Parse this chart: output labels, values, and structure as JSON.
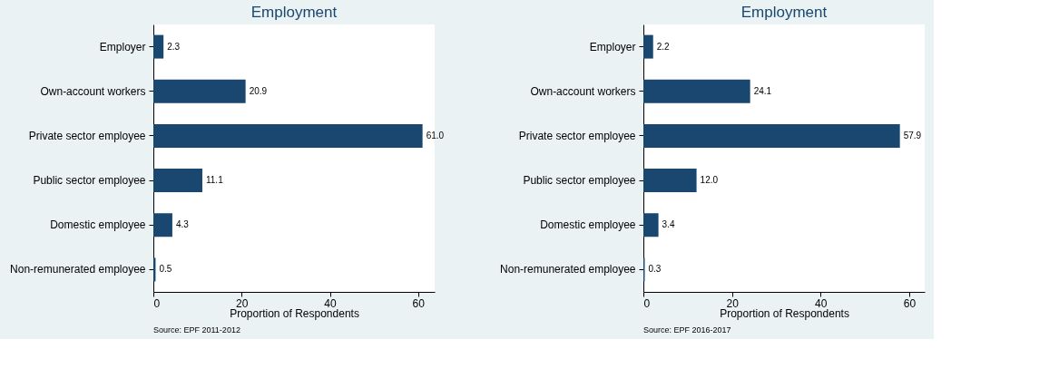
{
  "chart_data": [
    {
      "type": "bar",
      "orientation": "horizontal",
      "title": "Employment",
      "xlabel": "Proportion of Respondents",
      "categories": [
        "Employer",
        "Own-account workers",
        "Private sector employee",
        "Public sector employee",
        "Domestic employee",
        "Non-remunerated employee"
      ],
      "values": [
        2.3,
        20.9,
        61.0,
        11.1,
        4.3,
        0.5
      ],
      "color": "#1a476f",
      "value_labels": [
        "2.3",
        "20.9",
        "61.0",
        "11.1",
        "4.3",
        "0.5"
      ],
      "xlim": [
        0,
        63.75
      ],
      "xticks": [
        0,
        20,
        40,
        60
      ],
      "annotations": [
        "Source: EPF 2011-2012"
      ]
    },
    {
      "type": "bar",
      "orientation": "horizontal",
      "title": "Employment",
      "xlabel": "Proportion of Respondents",
      "categories": [
        "Employer",
        "Own-account workers",
        "Private sector employee",
        "Public sector employee",
        "Domestic employee",
        "Non-remunerated employee"
      ],
      "values": [
        2.2,
        24.1,
        57.9,
        12.0,
        3.4,
        0.3
      ],
      "color": "#1a476f",
      "value_labels": [
        "2.2",
        "24.1",
        "57.9",
        "12.0",
        "3.4",
        "0.3"
      ],
      "xlim": [
        0,
        63.5
      ],
      "xticks": [
        0,
        20,
        40,
        60
      ],
      "annotations": [
        "Source: EPF 2016-2017"
      ]
    }
  ]
}
